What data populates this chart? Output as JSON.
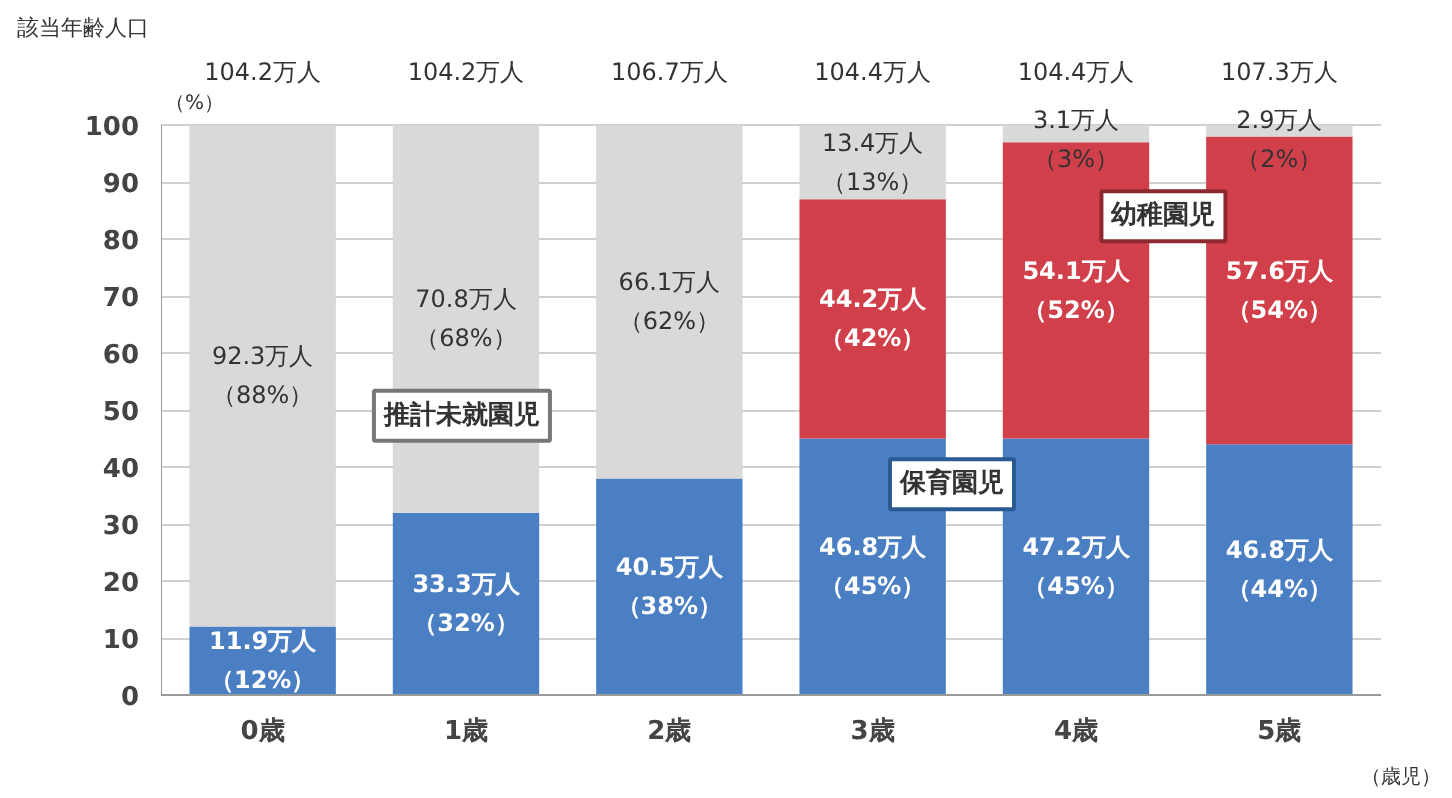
{
  "chart_data": {
    "type": "bar",
    "stacked": true,
    "categories": [
      "0歳",
      "1歳",
      "2歳",
      "3歳",
      "4歳",
      "5歳"
    ],
    "xlabel": "（歳児）",
    "ylabel": "（%）",
    "ylim": [
      0,
      100
    ],
    "yticks": [
      0,
      10,
      20,
      30,
      40,
      50,
      60,
      70,
      80,
      90,
      100
    ],
    "grid": "y",
    "series": [
      {
        "name": "保育園児",
        "color": "#4a7fc3",
        "values": [
          12,
          32,
          38,
          45,
          45,
          44
        ],
        "value_labels": [
          "11.9万人（12%）",
          "33.3万人（32%）",
          "40.5万人（38%）",
          "46.8万人（45%）",
          "47.2万人（45%）",
          "46.8万人（44%）"
        ]
      },
      {
        "name": "幼稚園児",
        "color": "#d1404a",
        "values": [
          0,
          0,
          0,
          42,
          52,
          54
        ],
        "value_labels": [
          null,
          null,
          null,
          "44.2万人（42%）",
          "54.1万人（52%）",
          "57.6万人（54%）"
        ]
      },
      {
        "name": "推計未就園児",
        "color": "#d9d9d9",
        "values": [
          88,
          68,
          62,
          13,
          3,
          2
        ],
        "value_labels": [
          "92.3万人（88%）",
          "70.8万人（68%）",
          "66.1万人（62%）",
          "13.4万人（13%）",
          "3.1万人（3%）",
          "2.9万人（2%）"
        ]
      }
    ],
    "annotations": [
      "該当年齢人口",
      "104.2万人",
      "104.2万人",
      "106.7万人",
      "104.4万人",
      "104.4万人",
      "107.3万人"
    ]
  }
}
